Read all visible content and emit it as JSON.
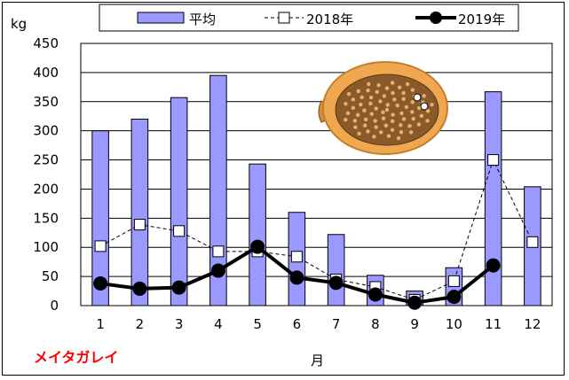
{
  "chart_data": {
    "type": "bar",
    "title": "",
    "ylabel": "kg",
    "xlabel": "月",
    "species": "メイタガレイ",
    "categories": [
      "1",
      "2",
      "3",
      "4",
      "5",
      "6",
      "7",
      "8",
      "9",
      "10",
      "11",
      "12"
    ],
    "ylim": [
      0,
      450
    ],
    "yticks": [
      0,
      50,
      100,
      150,
      200,
      250,
      300,
      350,
      400,
      450
    ],
    "grid": true,
    "legend_placement": "top-center",
    "series": [
      {
        "name": "平均",
        "kind": "bar",
        "color": "#9999ff",
        "values": [
          300,
          320,
          357,
          395,
          243,
          160,
          122,
          52,
          25,
          65,
          367,
          204
        ]
      },
      {
        "name": "2018年",
        "kind": "line",
        "style": "dashed-open-square",
        "color": "#000000",
        "values": [
          102,
          139,
          128,
          93,
          93,
          84,
          45,
          32,
          10,
          42,
          250,
          109
        ]
      },
      {
        "name": "2019年",
        "kind": "line",
        "style": "solid-filled-circle",
        "color": "#000000",
        "values": [
          38,
          29,
          31,
          60,
          101,
          48,
          39,
          19,
          5,
          15,
          69,
          null
        ]
      }
    ]
  },
  "decoration": {
    "illustration": "flounder-fish-icon"
  }
}
